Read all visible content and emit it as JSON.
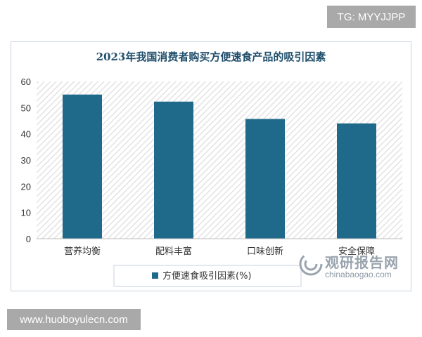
{
  "badge": {
    "text": "TG: MYYJJPP"
  },
  "footer": {
    "text": "www.huoboyulecn.com"
  },
  "watermark": {
    "name": "观研报告网",
    "url": "chinabaogao.com"
  },
  "colors": {
    "bar": "#1f6a8a",
    "title": "#1f4e6b",
    "hatch": "#e6e6e6"
  },
  "chart_data": {
    "type": "bar",
    "title": "2023年我国消费者购买方便速食产品的吸引因素",
    "xlabel": "",
    "ylabel": "",
    "categories": [
      "营养均衡",
      "配料丰富",
      "口味创新",
      "安全保障"
    ],
    "series": [
      {
        "name": "方便速食吸引因素(%)",
        "values": [
          55,
          52.3,
          45.7,
          44
        ]
      }
    ],
    "ylim": [
      0,
      60
    ],
    "yticks": [
      0,
      10,
      20,
      30,
      40,
      50,
      60
    ],
    "grid": false,
    "legend": "bottom"
  }
}
